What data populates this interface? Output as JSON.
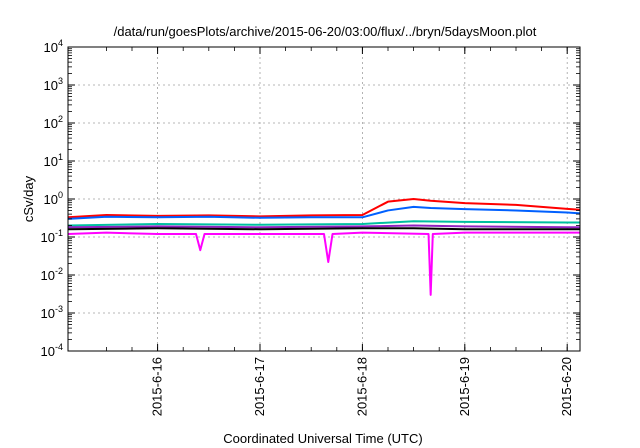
{
  "chart_data": {
    "type": "line",
    "title": "/data/run/goesPlots/archive/2015-06-20/03:00/flux/../bryn/5daysMoon.plot",
    "xlabel": "Coordinated Universal Time (UTC)",
    "ylabel": "cSv/day",
    "yscale": "log",
    "ylim": [
      0.0001,
      10000
    ],
    "xlim": [
      "2015-06-15 03:00",
      "2015-06-20 03:00"
    ],
    "grid": true,
    "legend": "none",
    "x_ticks": [
      "2015-6-16",
      "2015-6-17",
      "2015-6-18",
      "2015-6-19",
      "2015-6-20"
    ],
    "y_ticks": [
      {
        "base": "10",
        "exp": "-4",
        "value": 0.0001
      },
      {
        "base": "10",
        "exp": "-3",
        "value": 0.001
      },
      {
        "base": "10",
        "exp": "-2",
        "value": 0.01
      },
      {
        "base": "10",
        "exp": "-1",
        "value": 0.1
      },
      {
        "base": "10",
        "exp": "0",
        "value": 1
      },
      {
        "base": "10",
        "exp": "1",
        "value": 10
      },
      {
        "base": "10",
        "exp": "2",
        "value": 100
      },
      {
        "base": "10",
        "exp": "3",
        "value": 1000
      },
      {
        "base": "10",
        "exp": "4",
        "value": 10000
      }
    ],
    "series": [
      {
        "color": "#ff0000",
        "x": [
          "2015-06-15 03:00",
          "2015-06-15 12:00",
          "2015-06-16 00:00",
          "2015-06-16 12:00",
          "2015-06-17 00:00",
          "2015-06-17 12:00",
          "2015-06-18 00:00",
          "2015-06-18 06:00",
          "2015-06-18 12:00",
          "2015-06-18 16:00",
          "2015-06-19 00:00",
          "2015-06-19 12:00",
          "2015-06-20 00:00",
          "2015-06-20 03:00"
        ],
        "y": [
          0.33,
          0.38,
          0.36,
          0.37,
          0.35,
          0.37,
          0.38,
          0.85,
          1.0,
          0.9,
          0.78,
          0.7,
          0.55,
          0.52
        ]
      },
      {
        "color": "#0060ff",
        "x": [
          "2015-06-15 03:00",
          "2015-06-15 12:00",
          "2015-06-16 00:00",
          "2015-06-16 12:00",
          "2015-06-17 00:00",
          "2015-06-17 12:00",
          "2015-06-18 00:00",
          "2015-06-18 06:00",
          "2015-06-18 12:00",
          "2015-06-18 16:00",
          "2015-06-19 00:00",
          "2015-06-19 12:00",
          "2015-06-20 00:00",
          "2015-06-20 03:00"
        ],
        "y": [
          0.3,
          0.34,
          0.33,
          0.34,
          0.32,
          0.33,
          0.33,
          0.5,
          0.62,
          0.58,
          0.54,
          0.5,
          0.44,
          0.42
        ]
      },
      {
        "color": "#00c0a0",
        "x": [
          "2015-06-15 03:00",
          "2015-06-16 00:00",
          "2015-06-17 00:00",
          "2015-06-18 00:00",
          "2015-06-18 12:00",
          "2015-06-19 00:00",
          "2015-06-20 00:00",
          "2015-06-20 03:00"
        ],
        "y": [
          0.2,
          0.22,
          0.21,
          0.22,
          0.26,
          0.25,
          0.24,
          0.24
        ]
      },
      {
        "color": "#9020c0",
        "x": [
          "2015-06-15 03:00",
          "2015-06-16 00:00",
          "2015-06-17 00:00",
          "2015-06-18 00:00",
          "2015-06-18 12:00",
          "2015-06-19 00:00",
          "2015-06-20 00:00",
          "2015-06-20 03:00"
        ],
        "y": [
          0.18,
          0.19,
          0.18,
          0.19,
          0.2,
          0.19,
          0.18,
          0.18
        ]
      },
      {
        "color": "#000000",
        "x": [
          "2015-06-15 03:00",
          "2015-06-16 00:00",
          "2015-06-17 00:00",
          "2015-06-18 00:00",
          "2015-06-18 12:00",
          "2015-06-19 00:00",
          "2015-06-20 00:00",
          "2015-06-20 03:00"
        ],
        "y": [
          0.16,
          0.17,
          0.16,
          0.17,
          0.17,
          0.16,
          0.16,
          0.16
        ]
      },
      {
        "color": "#ff00ff",
        "x": [
          "2015-06-15 03:00",
          "2015-06-15 12:00",
          "2015-06-16 00:00",
          "2015-06-16 09:00",
          "2015-06-16 10:00",
          "2015-06-16 11:00",
          "2015-06-17 00:00",
          "2015-06-17 15:00",
          "2015-06-17 16:00",
          "2015-06-17 17:00",
          "2015-06-18 00:00",
          "2015-06-18 15:30",
          "2015-06-18 16:00",
          "2015-06-18 16:30",
          "2015-06-19 00:00",
          "2015-06-20 00:00",
          "2015-06-20 03:00"
        ],
        "y": [
          0.12,
          0.13,
          0.12,
          0.12,
          0.045,
          0.12,
          0.12,
          0.12,
          0.022,
          0.12,
          0.13,
          0.12,
          0.003,
          0.12,
          0.13,
          0.13,
          0.13
        ]
      }
    ]
  }
}
